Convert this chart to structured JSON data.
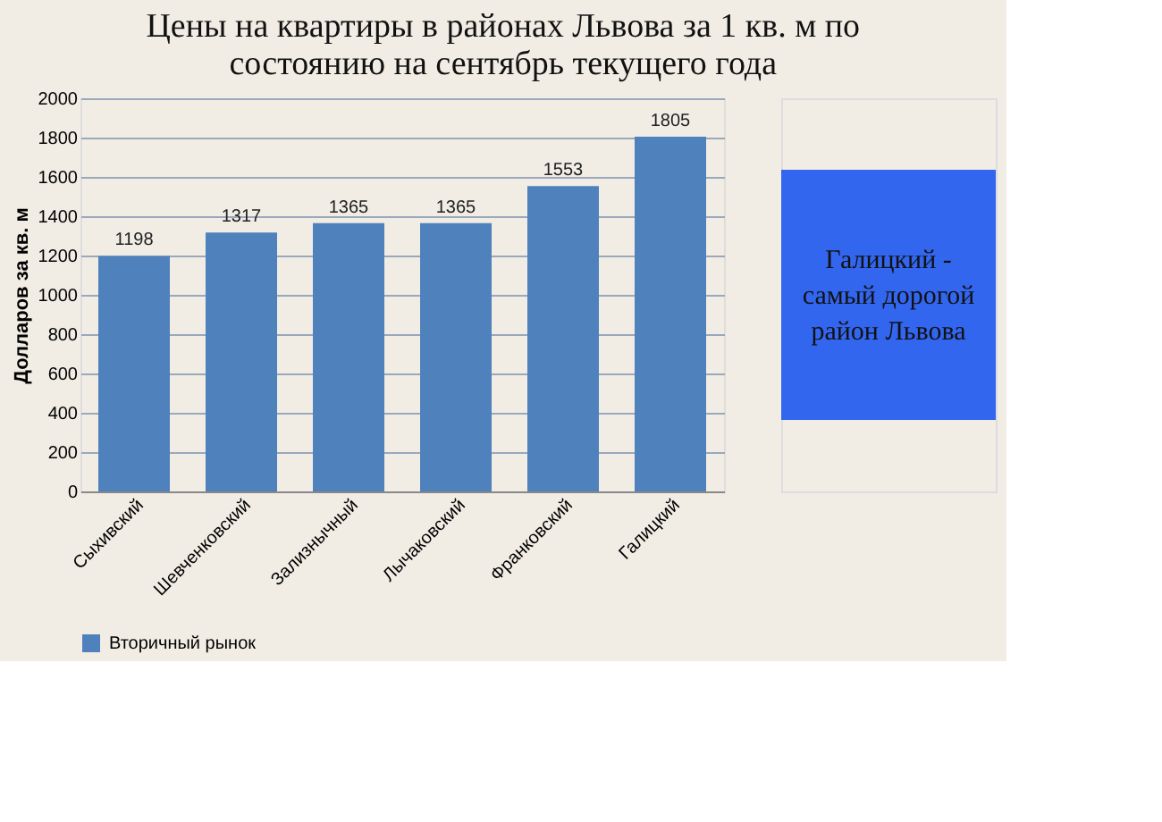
{
  "chart_data": {
    "type": "bar",
    "title": "Цены на квартиры в районах Львова за 1 кв. м по состоянию на сентябрь текущего года",
    "ylabel": "Долларов за кв. м",
    "categories": [
      "Сыхивский",
      "Шевченковский",
      "Зализнычный",
      "Лычаковский",
      "Франковский",
      "Галицкий"
    ],
    "series": [
      {
        "name": "Вторичный рынок",
        "color": "#4f81bd",
        "values": [
          1198,
          1317,
          1365,
          1365,
          1553,
          1805
        ]
      }
    ],
    "ylim": [
      0,
      2000
    ],
    "yticks": [
      0,
      200,
      400,
      600,
      800,
      1000,
      1200,
      1400,
      1600,
      1800,
      2000
    ],
    "grid": "y",
    "legend": "bottom",
    "data_labels": true,
    "annotations": [
      "Галицкий - самый дорогой район Львова"
    ]
  }
}
